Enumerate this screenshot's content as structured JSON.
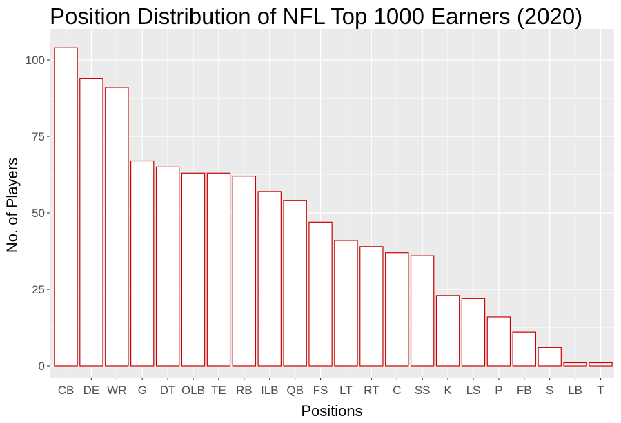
{
  "chart_data": {
    "type": "bar",
    "title": "Position Distribution of NFL Top 1000 Earners (2020)",
    "xlabel": "Positions",
    "ylabel": "No. of Players",
    "categories": [
      "CB",
      "DE",
      "WR",
      "G",
      "DT",
      "OLB",
      "TE",
      "RB",
      "ILB",
      "QB",
      "FS",
      "LT",
      "RT",
      "C",
      "SS",
      "K",
      "LS",
      "P",
      "FB",
      "S",
      "LB",
      "T"
    ],
    "values": [
      104,
      94,
      91,
      67,
      65,
      63,
      63,
      62,
      57,
      54,
      47,
      41,
      39,
      37,
      36,
      23,
      22,
      16,
      11,
      6,
      1,
      1
    ],
    "ylim": [
      0,
      108
    ],
    "yticks": [
      0,
      25,
      50,
      75,
      100
    ],
    "grid": true,
    "colors": {
      "panel_background": "#ebebeb",
      "gridline": "#ffffff",
      "bar_fill": "#ffffff",
      "bar_outline": "#cc0000",
      "tick_text": "#4d4d4d",
      "tick_mark": "#333333"
    }
  }
}
